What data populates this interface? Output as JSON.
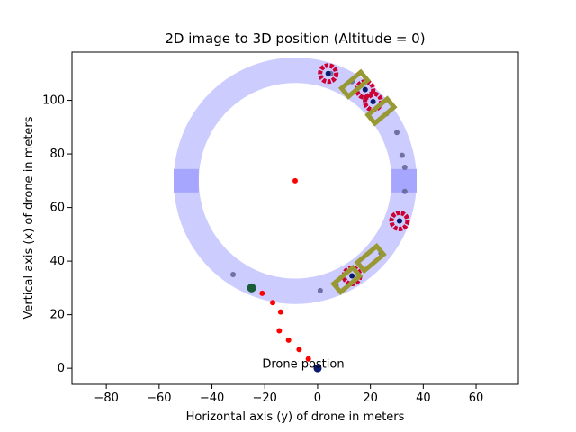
{
  "chart_data": {
    "type": "scatter",
    "title": "2D image to 3D position (Altitude = 0)",
    "xlabel": "Horizontal axis (y) of drone in meters",
    "ylabel": "Vertical axis (x) of drone in meters",
    "xlim": [
      -93,
      76
    ],
    "ylim": [
      -6,
      118
    ],
    "xticks": [
      -80,
      -60,
      -40,
      -20,
      0,
      20,
      40,
      60
    ],
    "yticks": [
      0,
      20,
      40,
      60,
      80,
      100
    ],
    "grid": false,
    "annotations": [
      {
        "text": "Drone postion",
        "x": -21,
        "y": 0.3
      }
    ],
    "ring": {
      "center": [
        -8.5,
        70
      ],
      "inner_radius": 36.5,
      "outer_radius": 46,
      "color": "#ccccff",
      "band_color": "#a6a6ff"
    },
    "series": [
      {
        "marker": "drone",
        "color": "#0b1a6e",
        "points": [
          [
            0,
            0
          ]
        ]
      },
      {
        "marker": "path",
        "color": "#ff0000",
        "points": [
          [
            -8.5,
            70
          ],
          [
            -21,
            28
          ],
          [
            -17,
            24.5
          ],
          [
            -14,
            21
          ],
          [
            -14.5,
            14
          ],
          [
            -11,
            10.5
          ],
          [
            -7,
            7
          ],
          [
            -3.5,
            3.5
          ]
        ]
      },
      {
        "marker": "ring-points",
        "color": "#666699",
        "points": [
          [
            -32,
            35
          ],
          [
            1,
            29
          ],
          [
            7,
            31
          ],
          [
            24,
            43
          ],
          [
            31,
            55
          ],
          [
            33,
            66
          ],
          [
            33,
            75
          ],
          [
            32,
            79.5
          ],
          [
            30,
            88
          ],
          [
            26,
            95
          ],
          [
            18,
            101
          ],
          [
            13,
            107
          ],
          [
            5,
            110
          ]
        ]
      },
      {
        "marker": "red-rings",
        "color": "#cc0033",
        "points": [
          [
            4,
            110
          ],
          [
            18,
            104
          ],
          [
            21,
            99.5
          ],
          [
            31,
            55
          ],
          [
            13,
            34.5
          ]
        ]
      },
      {
        "marker": "olive-boxes",
        "color": "#999933",
        "points": [
          [
            14,
            106
          ],
          [
            24,
            96
          ],
          [
            20,
            41
          ],
          [
            11,
            33
          ]
        ]
      },
      {
        "marker": "green-dot",
        "color": "#1a5c3a",
        "points": [
          [
            -25,
            30
          ]
        ]
      }
    ]
  }
}
